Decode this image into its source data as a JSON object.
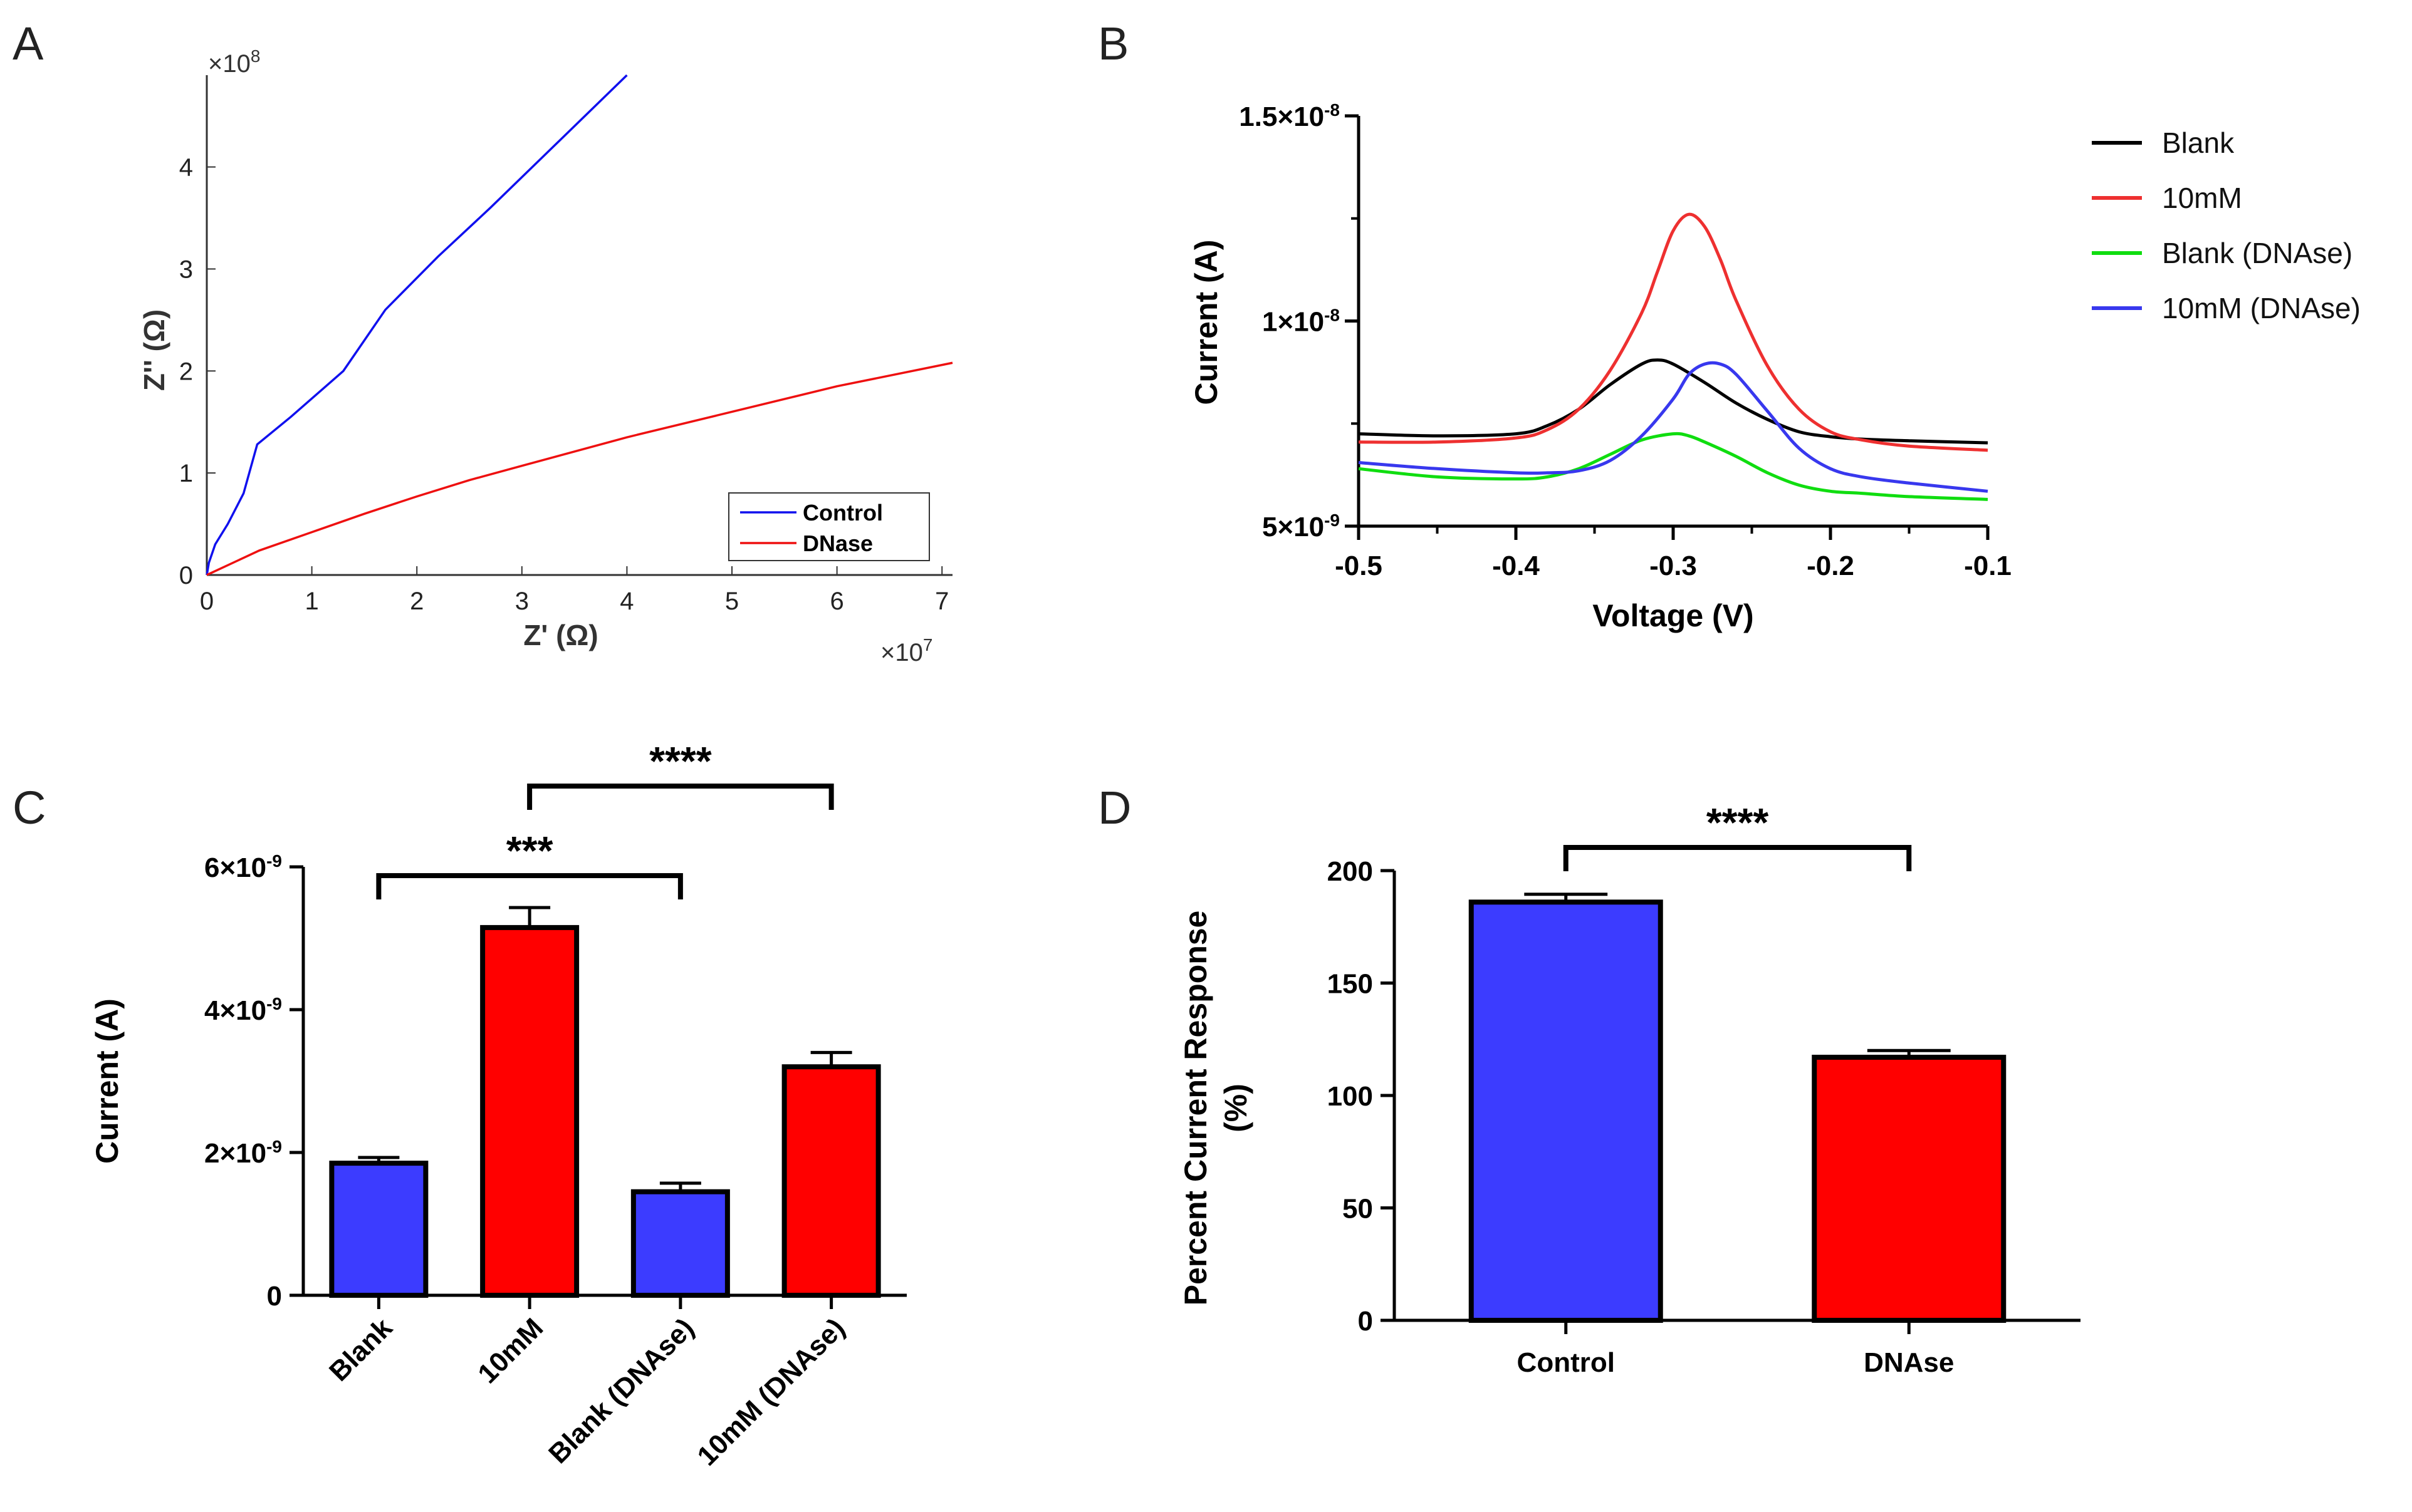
{
  "panels": {
    "a": "A",
    "b": "B",
    "c": "C",
    "d": "D"
  },
  "chart_data": [
    {
      "id": "A",
      "type": "line",
      "xlabel": "Z' (Ω)",
      "ylabel": "Z'' (Ω)",
      "x_multiplier": "×10^7",
      "y_multiplier": "×10^8",
      "xlim": [
        0,
        7.1
      ],
      "ylim": [
        0,
        4.9
      ],
      "x_ticks": [
        "0",
        "1",
        "2",
        "3",
        "4",
        "5",
        "6",
        "7"
      ],
      "y_ticks": [
        "0",
        "1",
        "2",
        "3",
        "4"
      ],
      "legend_position": "bottom-right",
      "series": [
        {
          "name": "Control",
          "color": "#1010ee",
          "x": [
            0,
            0.02,
            0.08,
            0.2,
            0.35,
            0.48,
            0.8,
            1.3,
            1.7,
            2.2,
            2.7,
            3.3,
            4.0
          ],
          "y": [
            0,
            0.12,
            0.3,
            0.5,
            0.8,
            1.28,
            1.55,
            2.0,
            2.6,
            3.12,
            3.6,
            4.2,
            4.9
          ]
        },
        {
          "name": "DNase",
          "color": "#ee1010",
          "x": [
            0,
            0.5,
            1.0,
            1.5,
            2.0,
            2.5,
            3.0,
            3.5,
            4.0,
            5.0,
            6.0,
            7.1
          ],
          "y": [
            0,
            0.24,
            0.42,
            0.6,
            0.77,
            0.93,
            1.07,
            1.21,
            1.35,
            1.6,
            1.85,
            2.08
          ]
        }
      ]
    },
    {
      "id": "B",
      "type": "line",
      "xlabel": "Voltage (V)",
      "ylabel": "Current (A)",
      "xlim": [
        -0.5,
        -0.1
      ],
      "ylim": [
        5e-09,
        1.5e-08
      ],
      "x_ticks": [
        "-0.5",
        "-0.4",
        "-0.3",
        "-0.2",
        "-0.1"
      ],
      "y_ticks": [
        {
          "base": "5×10",
          "exp": "-9"
        },
        {
          "base": "1×10",
          "exp": "-8"
        },
        {
          "base": "1.5×10",
          "exp": "-8"
        }
      ],
      "legend_position": "right",
      "series": [
        {
          "name": "Blank",
          "color": "#000000",
          "x": [
            -0.5,
            -0.45,
            -0.4,
            -0.38,
            -0.36,
            -0.34,
            -0.32,
            -0.31,
            -0.3,
            -0.28,
            -0.26,
            -0.24,
            -0.22,
            -0.2,
            -0.18,
            -0.15,
            -0.1
          ],
          "y": [
            7.25,
            7.2,
            7.25,
            7.45,
            7.85,
            8.45,
            8.95,
            9.05,
            8.95,
            8.5,
            8.0,
            7.6,
            7.3,
            7.18,
            7.12,
            7.08,
            7.03
          ]
        },
        {
          "name": "10mM",
          "color": "#ee3030",
          "x": [
            -0.5,
            -0.45,
            -0.4,
            -0.38,
            -0.36,
            -0.34,
            -0.32,
            -0.31,
            -0.3,
            -0.29,
            -0.28,
            -0.27,
            -0.26,
            -0.24,
            -0.22,
            -0.2,
            -0.18,
            -0.15,
            -0.1
          ],
          "y": [
            7.05,
            7.05,
            7.15,
            7.35,
            7.85,
            8.8,
            10.2,
            11.2,
            12.2,
            12.6,
            12.3,
            11.5,
            10.5,
            8.9,
            7.85,
            7.3,
            7.1,
            6.95,
            6.85
          ]
        },
        {
          "name": "Blank (DNAse)",
          "color": "#10dd10",
          "x": [
            -0.5,
            -0.45,
            -0.4,
            -0.38,
            -0.36,
            -0.34,
            -0.32,
            -0.3,
            -0.29,
            -0.28,
            -0.26,
            -0.24,
            -0.22,
            -0.2,
            -0.18,
            -0.15,
            -0.1
          ],
          "y": [
            6.4,
            6.2,
            6.15,
            6.2,
            6.4,
            6.75,
            7.1,
            7.25,
            7.2,
            7.05,
            6.7,
            6.3,
            6.0,
            5.85,
            5.8,
            5.72,
            5.65
          ]
        },
        {
          "name": "10mM (DNAse)",
          "color": "#3838ee",
          "x": [
            -0.5,
            -0.45,
            -0.4,
            -0.38,
            -0.36,
            -0.34,
            -0.32,
            -0.3,
            -0.29,
            -0.28,
            -0.27,
            -0.26,
            -0.24,
            -0.22,
            -0.2,
            -0.18,
            -0.15,
            -0.1
          ],
          "y": [
            6.55,
            6.4,
            6.3,
            6.3,
            6.35,
            6.6,
            7.2,
            8.1,
            8.7,
            8.95,
            8.95,
            8.7,
            7.8,
            6.9,
            6.4,
            6.2,
            6.05,
            5.85
          ]
        }
      ]
    },
    {
      "id": "C",
      "type": "bar",
      "ylabel": "Current (A)",
      "ylim": [
        0,
        6e-09
      ],
      "y_ticks": [
        {
          "base": "0",
          "exp": ""
        },
        {
          "base": "2×10",
          "exp": "-9"
        },
        {
          "base": "4×10",
          "exp": "-9"
        },
        {
          "base": "6×10",
          "exp": "-9"
        }
      ],
      "categories": [
        "Blank",
        "10mM",
        "Blank (DNAse)",
        "10mM (DNAse)"
      ],
      "values": [
        1.85e-09,
        5.15e-09,
        1.45e-09,
        3.2e-09
      ],
      "errors": [
        8e-11,
        2.8e-10,
        1.2e-10,
        2e-10
      ],
      "colors": [
        "#3c3cff",
        "#ff0000",
        "#3c3cff",
        "#ff0000"
      ],
      "significance": [
        {
          "label": "***",
          "from": 0,
          "to": 2
        },
        {
          "label": "****",
          "from": 1,
          "to": 3
        }
      ]
    },
    {
      "id": "D",
      "type": "bar",
      "ylabel": "Percent Current Response",
      "ylabel2": "(%)",
      "ylim": [
        0,
        200
      ],
      "y_ticks": [
        "0",
        "50",
        "100",
        "150",
        "200"
      ],
      "categories": [
        "Control",
        "DNAse"
      ],
      "values": [
        186,
        117
      ],
      "errors": [
        3.5,
        3
      ],
      "colors": [
        "#3c3cff",
        "#ff0000"
      ],
      "significance": [
        {
          "label": "****",
          "from": 0,
          "to": 1
        }
      ]
    }
  ]
}
